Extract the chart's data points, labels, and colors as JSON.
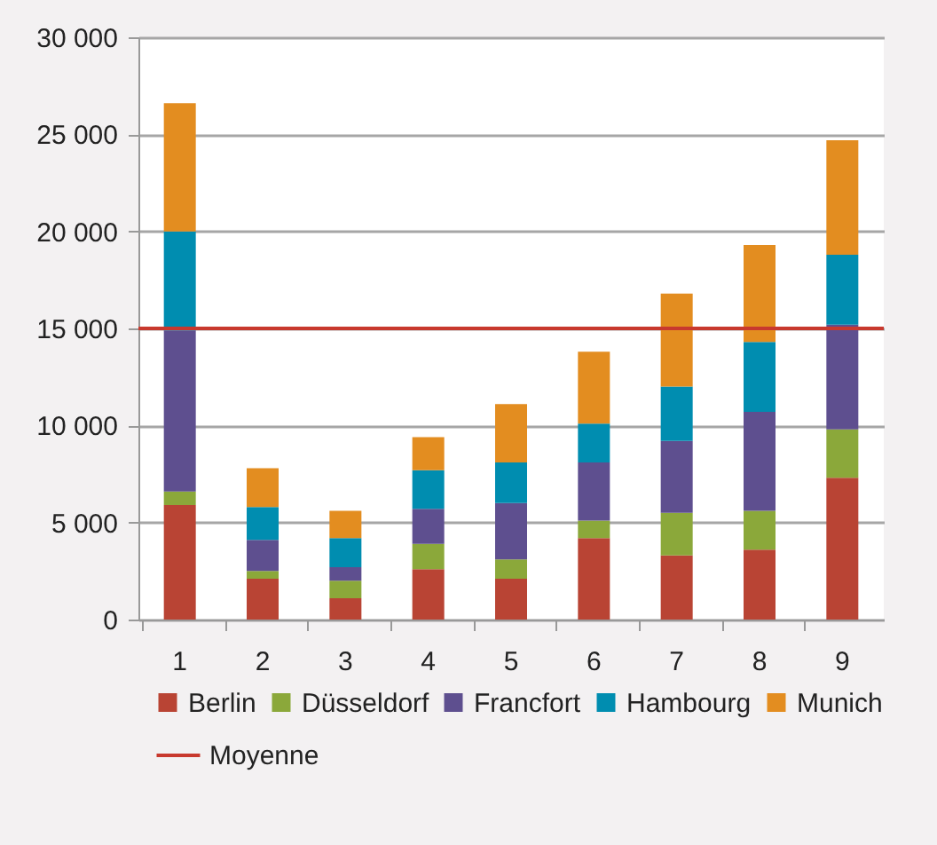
{
  "chart_data": {
    "type": "bar",
    "stacked": true,
    "categories": [
      "1",
      "2",
      "3",
      "4",
      "5",
      "6",
      "7",
      "8",
      "9"
    ],
    "series": [
      {
        "name": "Berlin",
        "color": "#b94434",
        "values": [
          5900,
          2100,
          1100,
          2600,
          2100,
          4200,
          3300,
          3600,
          7300
        ]
      },
      {
        "name": "Düsseldorf",
        "color": "#8ba83a",
        "values": [
          700,
          400,
          900,
          1300,
          1000,
          900,
          2200,
          2000,
          2500
        ]
      },
      {
        "name": "Francfort",
        "color": "#5e4f8f",
        "values": [
          8300,
          1600,
          700,
          1800,
          2900,
          3000,
          3700,
          5100,
          5400
        ]
      },
      {
        "name": "Hambourg",
        "color": "#008db0",
        "values": [
          5100,
          1700,
          1500,
          2000,
          2100,
          2000,
          2800,
          3600,
          3600
        ]
      },
      {
        "name": "Munich",
        "color": "#e38d20",
        "values": [
          6600,
          2000,
          1400,
          1700,
          3000,
          3700,
          4800,
          5000,
          5900
        ]
      }
    ],
    "ylim": [
      0,
      30000
    ],
    "yticks": [
      {
        "value": 0,
        "label": "0"
      },
      {
        "value": 5000,
        "label": "5 000"
      },
      {
        "value": 10000,
        "label": "10 000"
      },
      {
        "value": 15000,
        "label": "15 000"
      },
      {
        "value": 20000,
        "label": "20 000"
      },
      {
        "value": 25000,
        "label": "25 000"
      },
      {
        "value": 30000,
        "label": "30 000"
      }
    ],
    "ref_lines": [
      {
        "axis": "y",
        "value": 15000,
        "label": "Moyenne",
        "color": "#c8392e"
      }
    ],
    "grid": "y",
    "legend": "bottom"
  }
}
